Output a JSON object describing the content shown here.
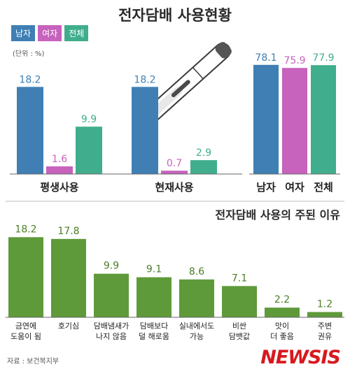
{
  "header": {
    "title": "전자담배 사용현황",
    "unit": "(단위 : %)"
  },
  "legend": [
    {
      "label": "남자",
      "color": "#3f7fb4"
    },
    {
      "label": "여자",
      "color": "#c762bd"
    },
    {
      "label": "전체",
      "color": "#40ae8c"
    }
  ],
  "section2_title": "전자담배 사용의 주된 이유",
  "source": "자료 : 보건복지부",
  "brand": "NEWSIS",
  "chart_data": [
    {
      "type": "bar",
      "title": "전자담배 사용현황",
      "categories": [
        "평생사용",
        "현재사용"
      ],
      "series": [
        {
          "name": "남자",
          "values": [
            18.2,
            18.2
          ]
        },
        {
          "name": "여자",
          "values": [
            1.6,
            0.7
          ]
        },
        {
          "name": "전체",
          "values": [
            9.9,
            2.9
          ]
        }
      ]
    },
    {
      "type": "bar",
      "categories": [
        "남자",
        "여자",
        "전체"
      ],
      "values": [
        78.1,
        75.9,
        77.9
      ]
    },
    {
      "type": "bar",
      "title": "전자담배 사용의 주된 이유",
      "categories": [
        "금연에 도움이 됨",
        "호기심",
        "담배냄새가 나지 않음",
        "담배보다 덜 해로움",
        "실내에서도 가능",
        "비싼 담뱃값",
        "맛이 더 좋음",
        "주변 권유"
      ],
      "values": [
        18.2,
        17.8,
        9.9,
        9.1,
        8.6,
        7.1,
        2.2,
        1.2
      ]
    }
  ]
}
